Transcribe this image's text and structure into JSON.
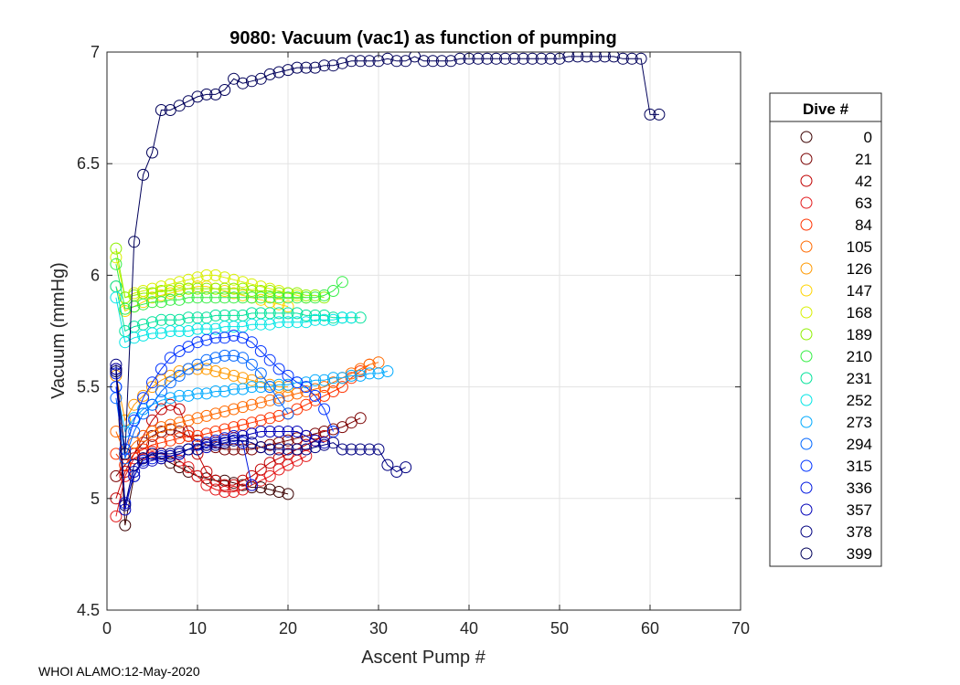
{
  "chart_data": {
    "type": "scatter",
    "title": "9080: Vacuum (vac1) as function of pumping",
    "xlabel": "Ascent Pump #",
    "ylabel": "Vacuum (mmHg)",
    "xlim": [
      0,
      70
    ],
    "ylim": [
      4.5,
      7
    ],
    "xticks": [
      0,
      10,
      20,
      30,
      40,
      50,
      60,
      70
    ],
    "yticks": [
      4.5,
      5,
      5.5,
      6,
      6.5,
      7
    ],
    "grid": true,
    "legend": {
      "title": "Dive #",
      "placement": "outside-right",
      "entries": [
        "0",
        "21",
        "42",
        "63",
        "84",
        "105",
        "126",
        "147",
        "168",
        "189",
        "210",
        "231",
        "252",
        "273",
        "294",
        "315",
        "336",
        "357",
        "378",
        "399"
      ],
      "colors": [
        "#3a0000",
        "#7a0000",
        "#c00000",
        "#e31a1c",
        "#ff3300",
        "#ff6a00",
        "#ff9900",
        "#ffd400",
        "#d8f000",
        "#8ff000",
        "#33ee44",
        "#00e29a",
        "#00e5e5",
        "#00aaff",
        "#0066ff",
        "#0033ff",
        "#0018e0",
        "#0000b8",
        "#000080",
        "#00005a"
      ]
    },
    "series": [
      {
        "name": "399",
        "x": [
          1,
          2,
          3,
          4,
          5,
          6,
          7,
          8,
          9,
          10,
          11,
          12,
          13,
          14,
          15,
          16,
          17,
          18,
          19,
          20,
          21,
          22,
          23,
          24,
          25,
          26,
          27,
          28,
          29,
          30,
          31,
          32,
          33,
          34,
          35,
          36,
          37,
          38,
          39,
          40,
          41,
          42,
          43,
          44,
          45,
          46,
          47,
          48,
          49,
          50,
          51,
          52,
          53,
          54,
          55,
          56,
          57,
          58,
          59,
          60,
          61
        ],
        "y": [
          5.57,
          5.2,
          6.15,
          6.45,
          6.55,
          6.74,
          6.74,
          6.76,
          6.78,
          6.8,
          6.81,
          6.81,
          6.83,
          6.88,
          6.86,
          6.87,
          6.88,
          6.9,
          6.91,
          6.92,
          6.93,
          6.93,
          6.93,
          6.94,
          6.94,
          6.95,
          6.96,
          6.96,
          6.96,
          6.96,
          6.97,
          6.96,
          6.96,
          6.98,
          6.96,
          6.96,
          6.96,
          6.96,
          6.97,
          6.97,
          6.97,
          6.97,
          6.97,
          6.97,
          6.97,
          6.97,
          6.97,
          6.97,
          6.97,
          6.97,
          6.98,
          6.98,
          6.98,
          6.98,
          6.98,
          6.98,
          6.97,
          6.97,
          6.97,
          6.72,
          6.72
        ]
      },
      {
        "name": "378",
        "x": [
          1,
          2,
          3,
          4,
          5,
          6,
          7,
          8,
          9,
          10,
          11,
          12,
          13,
          14,
          15,
          16,
          17,
          18,
          19,
          20,
          21,
          22,
          23,
          24,
          25,
          26,
          27,
          28,
          29,
          30,
          31,
          32,
          33
        ],
        "y": [
          5.6,
          4.97,
          5.15,
          5.18,
          5.2,
          5.2,
          5.2,
          5.21,
          5.22,
          5.22,
          5.24,
          5.24,
          5.25,
          5.26,
          5.26,
          5.25,
          5.23,
          5.22,
          5.22,
          5.22,
          5.22,
          5.22,
          5.23,
          5.24,
          5.25,
          5.22,
          5.22,
          5.22,
          5.22,
          5.22,
          5.15,
          5.12,
          5.14
        ]
      },
      {
        "name": "357",
        "x": [
          1,
          2,
          3,
          4,
          5,
          6,
          7,
          8,
          9,
          10,
          11,
          12,
          13,
          14,
          15,
          16,
          17,
          18,
          19,
          20,
          21,
          22,
          23,
          24
        ],
        "y": [
          5.58,
          4.95,
          5.12,
          5.16,
          5.17,
          5.18,
          5.19,
          5.2,
          5.22,
          5.22,
          5.23,
          5.25,
          5.26,
          5.27,
          5.28,
          5.29,
          5.3,
          5.3,
          5.3,
          5.3,
          5.3,
          5.28,
          5.26,
          5.25
        ]
      },
      {
        "name": "336",
        "x": [
          1,
          2,
          3,
          4,
          5,
          6,
          7,
          8,
          9,
          10,
          11,
          12,
          13,
          14,
          15,
          16
        ],
        "y": [
          5.56,
          4.98,
          5.1,
          5.17,
          5.18,
          5.19,
          5.19,
          5.2,
          5.22,
          5.24,
          5.25,
          5.26,
          5.27,
          5.28,
          5.25,
          5.06
        ]
      },
      {
        "name": "315",
        "x": [
          1,
          2,
          3,
          4,
          5,
          6,
          7,
          8,
          9,
          10,
          11,
          12,
          13,
          14,
          15,
          16,
          17,
          18,
          19,
          20,
          21,
          22,
          23,
          24,
          25
        ],
        "y": [
          5.5,
          5.22,
          5.35,
          5.45,
          5.52,
          5.58,
          5.63,
          5.66,
          5.68,
          5.7,
          5.71,
          5.72,
          5.72,
          5.73,
          5.72,
          5.7,
          5.66,
          5.62,
          5.58,
          5.55,
          5.52,
          5.5,
          5.46,
          5.4,
          5.3
        ]
      },
      {
        "name": "294",
        "x": [
          1,
          2,
          3,
          4,
          5,
          6,
          7,
          8,
          9,
          10,
          11,
          12,
          13,
          14,
          15,
          16,
          17,
          18,
          19,
          20
        ],
        "y": [
          5.45,
          5.18,
          5.3,
          5.38,
          5.42,
          5.48,
          5.52,
          5.55,
          5.58,
          5.6,
          5.62,
          5.63,
          5.64,
          5.64,
          5.63,
          5.6,
          5.56,
          5.5,
          5.44,
          5.38
        ]
      },
      {
        "name": "273",
        "x": [
          1,
          2,
          3,
          4,
          5,
          6,
          7,
          8,
          9,
          10,
          11,
          12,
          13,
          14,
          15,
          16,
          17,
          18,
          19,
          20,
          21,
          22,
          23,
          24,
          25,
          26,
          27,
          28,
          29,
          30,
          31
        ],
        "y": [
          5.5,
          5.3,
          5.36,
          5.4,
          5.42,
          5.44,
          5.45,
          5.46,
          5.46,
          5.47,
          5.47,
          5.48,
          5.48,
          5.49,
          5.49,
          5.5,
          5.5,
          5.5,
          5.51,
          5.51,
          5.52,
          5.52,
          5.53,
          5.53,
          5.54,
          5.54,
          5.55,
          5.55,
          5.56,
          5.56,
          5.57
        ]
      },
      {
        "name": "252",
        "x": [
          1,
          2,
          3,
          4,
          5,
          6,
          7,
          8,
          9,
          10,
          11,
          12,
          13,
          14,
          15,
          16,
          17,
          18,
          19,
          20,
          21,
          22,
          23,
          24,
          25,
          26,
          27
        ],
        "y": [
          5.9,
          5.7,
          5.72,
          5.73,
          5.74,
          5.74,
          5.75,
          5.75,
          5.75,
          5.76,
          5.76,
          5.76,
          5.77,
          5.77,
          5.77,
          5.78,
          5.78,
          5.78,
          5.79,
          5.79,
          5.79,
          5.79,
          5.8,
          5.8,
          5.8,
          5.81,
          5.81
        ]
      },
      {
        "name": "231",
        "x": [
          1,
          2,
          3,
          4,
          5,
          6,
          7,
          8,
          9,
          10,
          11,
          12,
          13,
          14,
          15,
          16,
          17,
          18,
          19,
          20,
          21,
          22,
          23,
          24,
          25,
          26,
          27,
          28
        ],
        "y": [
          5.95,
          5.75,
          5.77,
          5.78,
          5.79,
          5.8,
          5.8,
          5.8,
          5.81,
          5.81,
          5.81,
          5.82,
          5.82,
          5.82,
          5.82,
          5.83,
          5.83,
          5.83,
          5.83,
          5.83,
          5.83,
          5.82,
          5.82,
          5.82,
          5.81,
          5.81,
          5.81,
          5.81
        ]
      },
      {
        "name": "210",
        "x": [
          1,
          2,
          3,
          4,
          5,
          6,
          7,
          8,
          9,
          10,
          11,
          12,
          13,
          14,
          15,
          16,
          17,
          18,
          19,
          20,
          21,
          22,
          23,
          24,
          25,
          26
        ],
        "y": [
          6.05,
          5.85,
          5.86,
          5.87,
          5.88,
          5.88,
          5.89,
          5.89,
          5.9,
          5.9,
          5.9,
          5.9,
          5.9,
          5.9,
          5.9,
          5.9,
          5.9,
          5.9,
          5.9,
          5.9,
          5.9,
          5.9,
          5.9,
          5.91,
          5.93,
          5.97
        ]
      },
      {
        "name": "189",
        "x": [
          1,
          2,
          3,
          4,
          5,
          6,
          7,
          8,
          9,
          10,
          11,
          12,
          13,
          14,
          15,
          16,
          17,
          18,
          19,
          20,
          21,
          22,
          23,
          24
        ],
        "y": [
          6.12,
          5.9,
          5.91,
          5.92,
          5.92,
          5.93,
          5.93,
          5.94,
          5.94,
          5.94,
          5.94,
          5.94,
          5.94,
          5.94,
          5.94,
          5.93,
          5.93,
          5.93,
          5.92,
          5.92,
          5.92,
          5.91,
          5.91,
          5.9
        ]
      },
      {
        "name": "168",
        "x": [
          1,
          2,
          3,
          4,
          5,
          6,
          7,
          8,
          9,
          10,
          11,
          12,
          13,
          14,
          15,
          16,
          17,
          18,
          19,
          20,
          21,
          22
        ],
        "y": [
          6.08,
          5.9,
          5.92,
          5.93,
          5.94,
          5.95,
          5.96,
          5.97,
          5.98,
          5.99,
          6.0,
          6.0,
          5.99,
          5.98,
          5.97,
          5.96,
          5.95,
          5.94,
          5.93,
          5.92,
          5.91,
          5.9
        ]
      },
      {
        "name": "147",
        "x": [
          1,
          2,
          3,
          4,
          5,
          6,
          7,
          8,
          9,
          10,
          11,
          12,
          13,
          14,
          15,
          16,
          17,
          18,
          19,
          20
        ],
        "y": [
          5.95,
          5.84,
          5.86,
          5.88,
          5.9,
          5.91,
          5.92,
          5.93,
          5.94,
          5.95,
          5.95,
          5.94,
          5.93,
          5.92,
          5.91,
          5.9,
          5.89,
          5.88,
          5.87,
          5.86
        ]
      },
      {
        "name": "126",
        "x": [
          1,
          2,
          3,
          4,
          5,
          6,
          7,
          8,
          9,
          10,
          11,
          12,
          13,
          14,
          15,
          16,
          17,
          18,
          19,
          20
        ],
        "y": [
          5.55,
          5.35,
          5.42,
          5.46,
          5.5,
          5.53,
          5.55,
          5.57,
          5.58,
          5.58,
          5.58,
          5.57,
          5.56,
          5.55,
          5.54,
          5.53,
          5.52,
          5.51,
          5.5,
          5.5
        ]
      },
      {
        "name": "105",
        "x": [
          1,
          2,
          3,
          4,
          5,
          6,
          7,
          8,
          9,
          10,
          11,
          12,
          13,
          14,
          15,
          16,
          17,
          18,
          19,
          20,
          21,
          22,
          23,
          24,
          25,
          26,
          27,
          28,
          29,
          30
        ],
        "y": [
          5.3,
          5.2,
          5.25,
          5.28,
          5.3,
          5.32,
          5.33,
          5.34,
          5.35,
          5.36,
          5.37,
          5.38,
          5.39,
          5.4,
          5.41,
          5.42,
          5.43,
          5.44,
          5.45,
          5.46,
          5.47,
          5.48,
          5.49,
          5.5,
          5.52,
          5.54,
          5.56,
          5.58,
          5.6,
          5.61
        ]
      },
      {
        "name": "84",
        "x": [
          1,
          2,
          3,
          4,
          5,
          6,
          7,
          8,
          9,
          10,
          11,
          12,
          13,
          14,
          15,
          16,
          17,
          18,
          19,
          20,
          21,
          22,
          23,
          24,
          25,
          26,
          27,
          28,
          29
        ],
        "y": [
          5.2,
          5.15,
          5.2,
          5.22,
          5.24,
          5.25,
          5.26,
          5.27,
          5.28,
          5.28,
          5.29,
          5.3,
          5.31,
          5.32,
          5.33,
          5.34,
          5.35,
          5.36,
          5.37,
          5.38,
          5.4,
          5.42,
          5.44,
          5.46,
          5.48,
          5.5,
          5.54,
          5.57,
          5.6
        ]
      },
      {
        "name": "63",
        "x": [
          1,
          2,
          3,
          4,
          5,
          6,
          7,
          8,
          9,
          10,
          11,
          12,
          13,
          14,
          15,
          16,
          17,
          18,
          19,
          20,
          21,
          22
        ],
        "y": [
          4.92,
          5.1,
          5.18,
          5.2,
          5.21,
          5.2,
          5.19,
          5.17,
          5.14,
          5.1,
          5.06,
          5.04,
          5.03,
          5.03,
          5.04,
          5.06,
          5.08,
          5.1,
          5.13,
          5.15,
          5.17,
          5.19
        ]
      },
      {
        "name": "42",
        "x": [
          1,
          2,
          3,
          4,
          5,
          6,
          7,
          8,
          9,
          10,
          11,
          12,
          13,
          14,
          15,
          16,
          17,
          18,
          19,
          20,
          21,
          22,
          23,
          24
        ],
        "y": [
          5.0,
          5.12,
          5.2,
          5.28,
          5.35,
          5.4,
          5.42,
          5.4,
          5.3,
          5.2,
          5.12,
          5.08,
          5.06,
          5.06,
          5.08,
          5.1,
          5.13,
          5.16,
          5.18,
          5.2,
          5.22,
          5.24,
          5.26,
          5.28
        ]
      },
      {
        "name": "21",
        "x": [
          1,
          2,
          3,
          4,
          5,
          6,
          7,
          8,
          9,
          10,
          11,
          12,
          13,
          14,
          15,
          16,
          17,
          18,
          19,
          20,
          21,
          22,
          23,
          24,
          25,
          26,
          27,
          28
        ],
        "y": [
          5.1,
          5.15,
          5.2,
          5.25,
          5.28,
          5.3,
          5.31,
          5.3,
          5.28,
          5.26,
          5.24,
          5.23,
          5.22,
          5.22,
          5.22,
          5.22,
          5.23,
          5.24,
          5.25,
          5.26,
          5.27,
          5.28,
          5.29,
          5.3,
          5.31,
          5.32,
          5.34,
          5.36
        ]
      },
      {
        "name": "0",
        "x": [
          1,
          2,
          3,
          4,
          5,
          6,
          7,
          8,
          9,
          10,
          11,
          12,
          13,
          14,
          15,
          16,
          17,
          18,
          19,
          20
        ],
        "y": [
          5.58,
          4.88,
          5.1,
          5.18,
          5.2,
          5.18,
          5.16,
          5.14,
          5.12,
          5.1,
          5.09,
          5.08,
          5.08,
          5.07,
          5.06,
          5.05,
          5.05,
          5.04,
          5.03,
          5.02
        ]
      }
    ]
  },
  "footer": "WHOI ALAMO:12-May-2020"
}
